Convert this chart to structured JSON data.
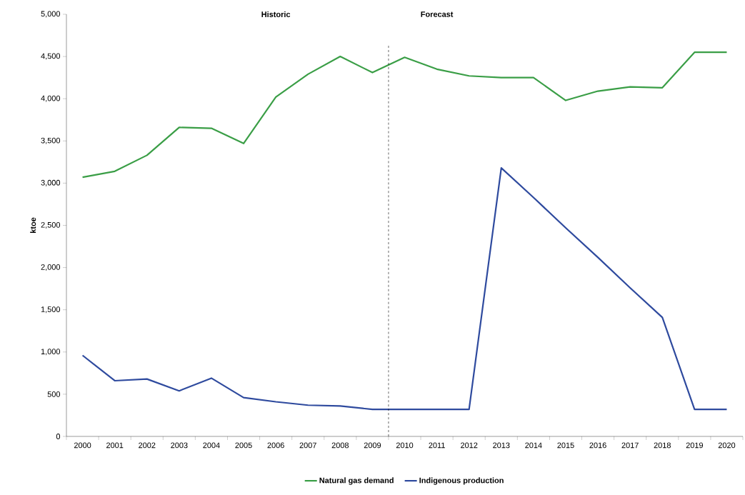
{
  "chart_data": {
    "type": "line",
    "ylabel": "ktoe",
    "categories": [
      "2000",
      "2001",
      "2002",
      "2003",
      "2004",
      "2005",
      "2006",
      "2007",
      "2008",
      "2009",
      "2010",
      "2011",
      "2012",
      "2013",
      "2014",
      "2015",
      "2016",
      "2017",
      "2018",
      "2019",
      "2020"
    ],
    "series": [
      {
        "name": "Natural gas demand",
        "color": "#3a9e46",
        "values": [
          3070,
          3140,
          3330,
          3660,
          3650,
          3470,
          4020,
          4290,
          4500,
          4310,
          4490,
          4350,
          4270,
          4250,
          4250,
          3980,
          4090,
          4140,
          4130,
          4550,
          4550
        ]
      },
      {
        "name": "Indigenous production",
        "color": "#2e4a9e",
        "values": [
          960,
          660,
          680,
          540,
          690,
          460,
          410,
          370,
          360,
          320,
          320,
          320,
          320,
          3180,
          2830,
          2470,
          2120,
          1760,
          1410,
          320,
          320
        ]
      }
    ],
    "ylim": [
      0,
      5000
    ],
    "yticks": [
      0,
      500,
      {
        "value": 1000,
        "label": "1,000"
      },
      {
        "value": 1500,
        "label": "1,500"
      },
      {
        "value": 2000,
        "label": "2,000"
      },
      {
        "value": 2500,
        "label": "2,500"
      },
      {
        "value": 3000,
        "label": "3,000"
      },
      {
        "value": 3500,
        "label": "3,500"
      },
      {
        "value": 4000,
        "label": "4,000"
      },
      {
        "value": 4500,
        "label": "4,500"
      },
      {
        "value": 5000,
        "label": "5,000"
      }
    ],
    "annotations": [
      "Historic",
      "Forecast"
    ],
    "grid": false,
    "legend": "bottom",
    "marker": "none",
    "line_style": "solid"
  }
}
